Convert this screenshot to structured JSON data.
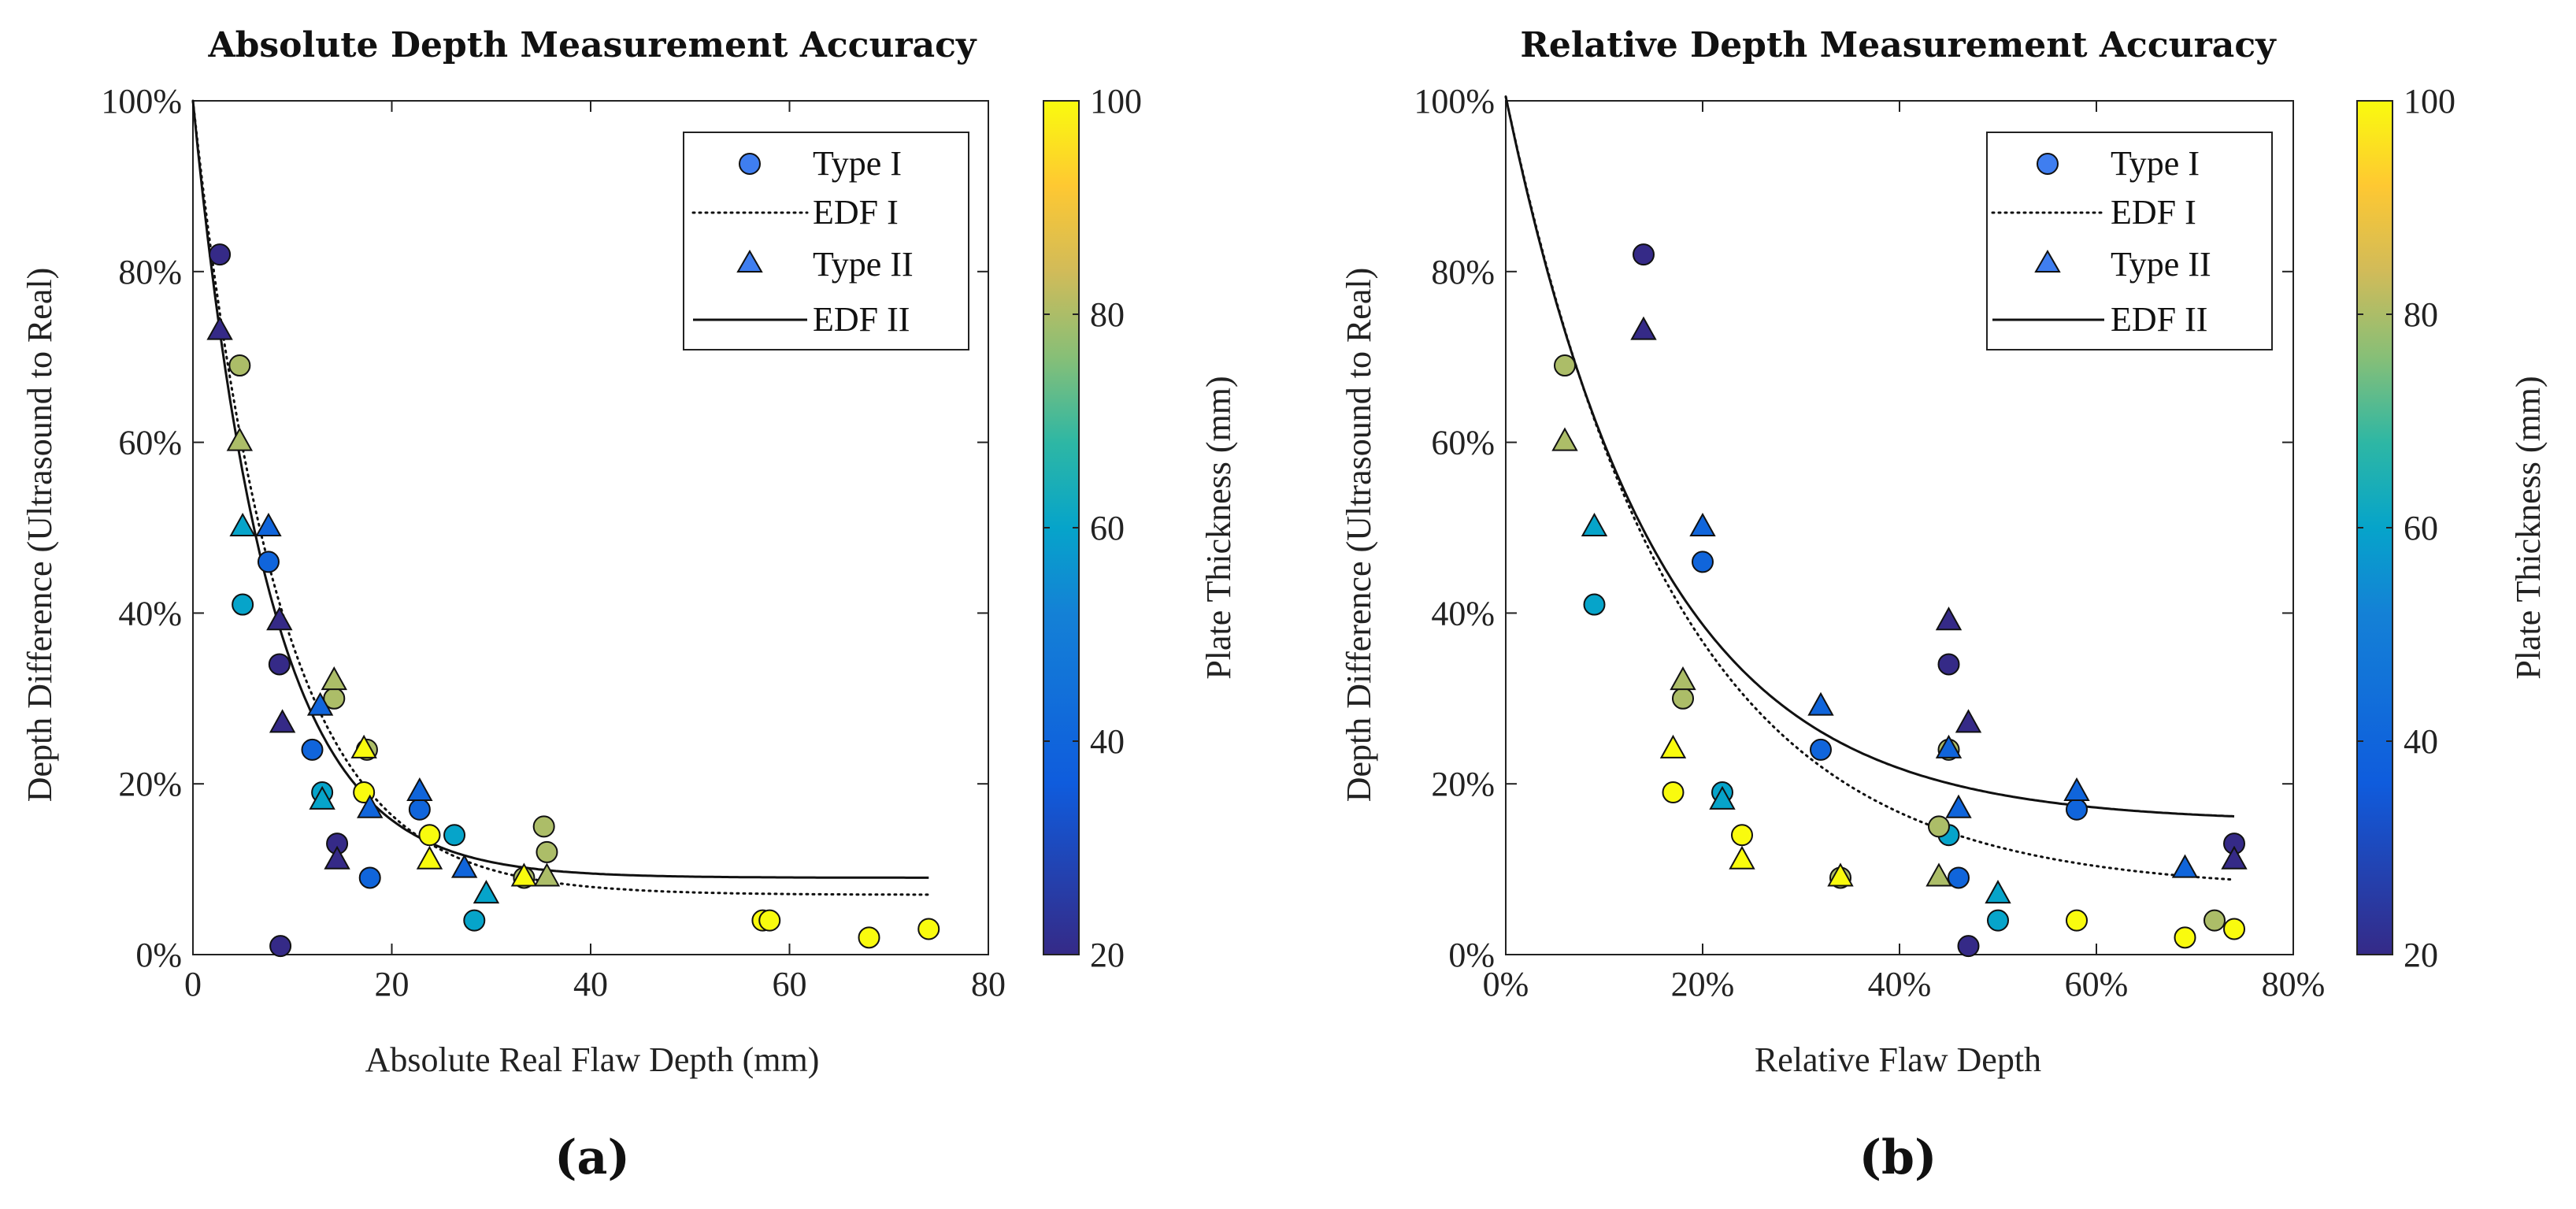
{
  "chart_data": [
    {
      "type": "scatter",
      "panel_label": "(a)",
      "title": "Absolute Depth Measurement Accuracy",
      "xlabel": "Absolute Real Flaw Depth (mm)",
      "ylabel": "Depth Difference (Ultrasound to Real)",
      "xlim": [
        0,
        80
      ],
      "ylim": [
        0,
        100
      ],
      "xticks": [
        0,
        20,
        40,
        60,
        80
      ],
      "xtick_labels": [
        "0",
        "20",
        "40",
        "60",
        "80"
      ],
      "yticks": [
        0,
        20,
        40,
        60,
        80,
        100
      ],
      "ytick_labels": [
        "0%",
        "20%",
        "40%",
        "60%",
        "80%",
        "100%"
      ],
      "legend": [
        "Type I",
        "EDF I",
        "Type II",
        "EDF II"
      ],
      "legend_position": "top-right",
      "series": [
        {
          "name": "Type I",
          "marker": "circle",
          "points": [
            {
              "x": 2.7,
              "y": 82,
              "t": 20
            },
            {
              "x": 4.7,
              "y": 69,
              "t": 80
            },
            {
              "x": 5.0,
              "y": 41,
              "t": 60
            },
            {
              "x": 7.6,
              "y": 46,
              "t": 40
            },
            {
              "x": 8.7,
              "y": 34,
              "t": 20
            },
            {
              "x": 12.0,
              "y": 24,
              "t": 40
            },
            {
              "x": 13.0,
              "y": 19,
              "t": 60
            },
            {
              "x": 14.2,
              "y": 30,
              "t": 80
            },
            {
              "x": 14.5,
              "y": 13,
              "t": 20
            },
            {
              "x": 17.2,
              "y": 19,
              "t": 100
            },
            {
              "x": 17.5,
              "y": 24,
              "t": 80
            },
            {
              "x": 17.8,
              "y": 9,
              "t": 40
            },
            {
              "x": 8.8,
              "y": 1,
              "t": 20
            },
            {
              "x": 22.8,
              "y": 17,
              "t": 40
            },
            {
              "x": 23.8,
              "y": 14,
              "t": 100
            },
            {
              "x": 26.3,
              "y": 14,
              "t": 60
            },
            {
              "x": 28.3,
              "y": 4,
              "t": 60
            },
            {
              "x": 33.3,
              "y": 9,
              "t": 80
            },
            {
              "x": 35.3,
              "y": 15,
              "t": 80
            },
            {
              "x": 35.6,
              "y": 12,
              "t": 80
            },
            {
              "x": 57.3,
              "y": 4,
              "t": 100
            },
            {
              "x": 58.0,
              "y": 4,
              "t": 100
            },
            {
              "x": 68.0,
              "y": 2,
              "t": 100
            },
            {
              "x": 74.0,
              "y": 3,
              "t": 100
            }
          ]
        },
        {
          "name": "Type II",
          "marker": "triangle",
          "points": [
            {
              "x": 2.7,
              "y": 73,
              "t": 20
            },
            {
              "x": 4.7,
              "y": 60,
              "t": 80
            },
            {
              "x": 5.0,
              "y": 50,
              "t": 60
            },
            {
              "x": 7.6,
              "y": 50,
              "t": 40
            },
            {
              "x": 8.7,
              "y": 39,
              "t": 20
            },
            {
              "x": 9.0,
              "y": 27,
              "t": 20
            },
            {
              "x": 12.8,
              "y": 29,
              "t": 40
            },
            {
              "x": 13.0,
              "y": 18,
              "t": 60
            },
            {
              "x": 14.2,
              "y": 32,
              "t": 80
            },
            {
              "x": 14.5,
              "y": 11,
              "t": 20
            },
            {
              "x": 17.2,
              "y": 24,
              "t": 100
            },
            {
              "x": 17.8,
              "y": 17,
              "t": 40
            },
            {
              "x": 22.8,
              "y": 19,
              "t": 40
            },
            {
              "x": 23.8,
              "y": 11,
              "t": 100
            },
            {
              "x": 27.3,
              "y": 10,
              "t": 40
            },
            {
              "x": 29.5,
              "y": 7,
              "t": 60
            },
            {
              "x": 33.3,
              "y": 9,
              "t": 100
            },
            {
              "x": 35.6,
              "y": 9,
              "t": 80
            }
          ]
        }
      ],
      "curves": [
        {
          "name": "EDF I",
          "style": "dotted",
          "A": 93,
          "k": 0.115,
          "C": 7,
          "xmax": 74
        },
        {
          "name": "EDF II",
          "style": "solid",
          "A": 91,
          "k": 0.13,
          "C": 9,
          "xmax": 74
        }
      ],
      "colorbar": {
        "label": "Plate Thickness (mm)",
        "range": [
          20,
          100
        ],
        "ticks": [
          20,
          40,
          60,
          80,
          100
        ],
        "tick_labels": [
          "20",
          "40",
          "60",
          "80",
          "100"
        ]
      }
    },
    {
      "type": "scatter",
      "panel_label": "(b)",
      "title": "Relative Depth Measurement Accuracy",
      "xlabel": "Relative Flaw Depth",
      "ylabel": "Depth Difference (Ultrasound to Real)",
      "xlim": [
        0,
        80
      ],
      "ylim": [
        0,
        100
      ],
      "xticks": [
        0,
        20,
        40,
        60,
        80
      ],
      "xtick_labels": [
        "0%",
        "20%",
        "40%",
        "60%",
        "80%"
      ],
      "yticks": [
        0,
        20,
        40,
        60,
        80,
        100
      ],
      "ytick_labels": [
        "0%",
        "20%",
        "40%",
        "60%",
        "80%",
        "100%"
      ],
      "legend": [
        "Type I",
        "EDF I",
        "Type II",
        "EDF II"
      ],
      "legend_position": "top-right",
      "series": [
        {
          "name": "Type I",
          "marker": "circle",
          "points": [
            {
              "x": 14,
              "y": 82,
              "t": 20
            },
            {
              "x": 6,
              "y": 69,
              "t": 80
            },
            {
              "x": 9,
              "y": 41,
              "t": 60
            },
            {
              "x": 20,
              "y": 46,
              "t": 40
            },
            {
              "x": 45,
              "y": 34,
              "t": 20
            },
            {
              "x": 32,
              "y": 24,
              "t": 40
            },
            {
              "x": 22,
              "y": 19,
              "t": 60
            },
            {
              "x": 18,
              "y": 30,
              "t": 80
            },
            {
              "x": 74,
              "y": 13,
              "t": 20
            },
            {
              "x": 17,
              "y": 19,
              "t": 100
            },
            {
              "x": 45,
              "y": 24,
              "t": 80
            },
            {
              "x": 46,
              "y": 9,
              "t": 40
            },
            {
              "x": 47,
              "y": 1,
              "t": 20
            },
            {
              "x": 58,
              "y": 17,
              "t": 40
            },
            {
              "x": 24,
              "y": 14,
              "t": 100
            },
            {
              "x": 45,
              "y": 14,
              "t": 60
            },
            {
              "x": 50,
              "y": 4,
              "t": 60
            },
            {
              "x": 34,
              "y": 9,
              "t": 80
            },
            {
              "x": 44,
              "y": 15,
              "t": 80
            },
            {
              "x": 58,
              "y": 4,
              "t": 100
            },
            {
              "x": 69,
              "y": 2,
              "t": 100
            },
            {
              "x": 72,
              "y": 4,
              "t": 80
            },
            {
              "x": 74,
              "y": 3,
              "t": 100
            }
          ]
        },
        {
          "name": "Type II",
          "marker": "triangle",
          "points": [
            {
              "x": 14,
              "y": 73,
              "t": 20
            },
            {
              "x": 6,
              "y": 60,
              "t": 80
            },
            {
              "x": 9,
              "y": 50,
              "t": 60
            },
            {
              "x": 20,
              "y": 50,
              "t": 40
            },
            {
              "x": 45,
              "y": 39,
              "t": 20
            },
            {
              "x": 47,
              "y": 27,
              "t": 20
            },
            {
              "x": 32,
              "y": 29,
              "t": 40
            },
            {
              "x": 22,
              "y": 18,
              "t": 60
            },
            {
              "x": 18,
              "y": 32,
              "t": 80
            },
            {
              "x": 74,
              "y": 11,
              "t": 20
            },
            {
              "x": 17,
              "y": 24,
              "t": 100
            },
            {
              "x": 46,
              "y": 17,
              "t": 40
            },
            {
              "x": 58,
              "y": 19,
              "t": 40
            },
            {
              "x": 24,
              "y": 11,
              "t": 100
            },
            {
              "x": 69,
              "y": 10,
              "t": 40
            },
            {
              "x": 50,
              "y": 7,
              "t": 60
            },
            {
              "x": 34,
              "y": 9,
              "t": 100
            },
            {
              "x": 44,
              "y": 9,
              "t": 80
            },
            {
              "x": 45,
              "y": 24,
              "t": 40
            }
          ]
        }
      ],
      "curves": [
        {
          "name": "EDF I",
          "style": "dotted",
          "A": 93,
          "k": 0.058,
          "C": 7.5,
          "xmax": 74
        },
        {
          "name": "EDF II",
          "style": "solid",
          "A": 85,
          "k": 0.065,
          "C": 15.5,
          "xmax": 74
        }
      ],
      "colorbar": {
        "label": "Plate Thickness (mm)",
        "range": [
          20,
          100
        ],
        "ticks": [
          20,
          40,
          60,
          80,
          100
        ],
        "tick_labels": [
          "20",
          "40",
          "60",
          "80",
          "100"
        ]
      }
    }
  ]
}
